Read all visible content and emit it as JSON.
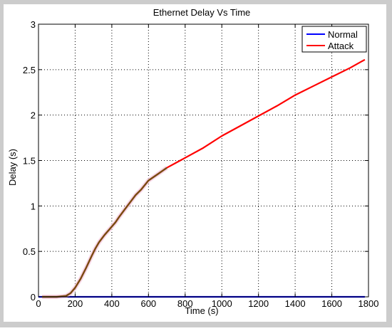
{
  "chart_data": {
    "type": "line",
    "title": "Ethernet Delay Vs Time",
    "xlabel": "Time (s)",
    "ylabel": "Delay (s)",
    "xlim": [
      0,
      1800
    ],
    "ylim": [
      0,
      3
    ],
    "x_ticks": [
      0,
      200,
      400,
      600,
      800,
      1000,
      1200,
      1400,
      1600,
      1800
    ],
    "y_ticks": [
      0,
      0.5,
      1,
      1.5,
      2,
      2.5,
      3
    ],
    "x_tick_labels": [
      "0",
      "200",
      "400",
      "600",
      "800",
      "1000",
      "1200",
      "1400",
      "1600",
      "1800"
    ],
    "y_tick_labels": [
      "0",
      "0.5",
      "1",
      "1.5",
      "2",
      "2.5",
      "3"
    ],
    "grid": true,
    "legend_position": "top-right",
    "series": [
      {
        "name": "Normal",
        "color": "#0000ff",
        "x": [
          0,
          1780
        ],
        "y": [
          0,
          0
        ]
      },
      {
        "name": "Attack",
        "color": "#ff0000",
        "overlap_color": "#7a4a10",
        "x": [
          20,
          100,
          150,
          175,
          200,
          230,
          260,
          290,
          310,
          330,
          360,
          390,
          420,
          440,
          470,
          500,
          530,
          560,
          600,
          650,
          700,
          800,
          900,
          1000,
          1100,
          1200,
          1300,
          1400,
          1500,
          1600,
          1700,
          1780
        ],
        "y": [
          0,
          0,
          0.01,
          0.04,
          0.1,
          0.2,
          0.32,
          0.45,
          0.53,
          0.6,
          0.68,
          0.75,
          0.82,
          0.88,
          0.96,
          1.04,
          1.12,
          1.18,
          1.28,
          1.35,
          1.42,
          1.53,
          1.64,
          1.77,
          1.88,
          1.99,
          2.1,
          2.22,
          2.32,
          2.42,
          2.52,
          2.61
        ]
      }
    ]
  }
}
